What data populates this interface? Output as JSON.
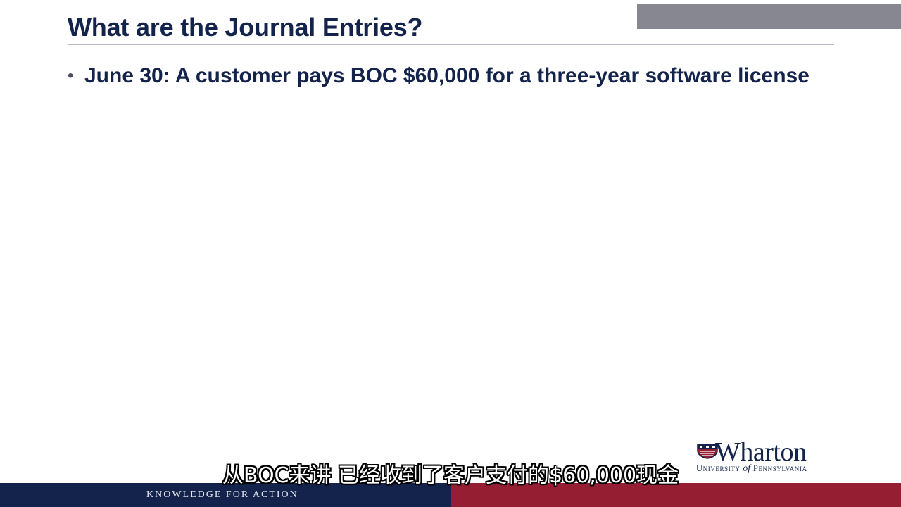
{
  "slide": {
    "title": "What are the Journal Entries?",
    "bullets": [
      "June 30: A customer pays BOC $60,000 for a three-year software license"
    ],
    "bullet_glyph": "•"
  },
  "logo": {
    "name": "Wharton",
    "sub_prefix": "University",
    "sub_of": "of",
    "sub_suffix": "Pennsylvania",
    "icon": "shield-icon"
  },
  "footer": {
    "tagline": "KNOWLEDGE FOR ACTION"
  },
  "subtitle": {
    "text": "从BOC来讲 已经收到了客户支付的$60,000现金"
  },
  "colors": {
    "navy": "#13234b",
    "red": "#961e32",
    "gray_bar": "#878791"
  }
}
